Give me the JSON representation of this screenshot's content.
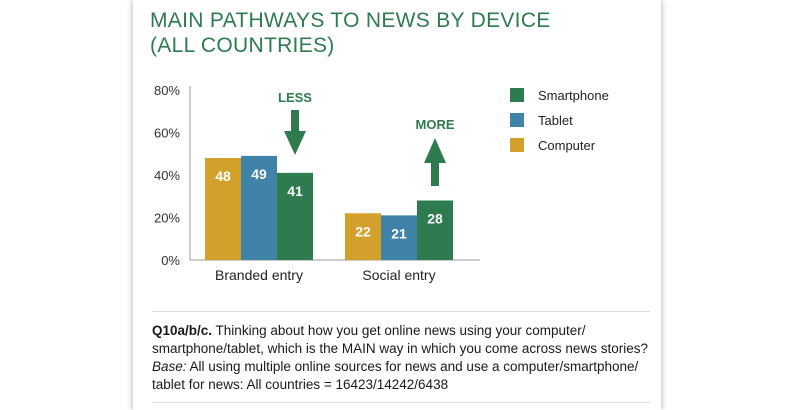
{
  "title": {
    "line1": "MAIN PATHWAYS TO NEWS BY DEVICE",
    "line2": "(ALL COUNTRIES)"
  },
  "colors": {
    "title": "#2e7b4f",
    "smartphone": "#2e7b4f",
    "tablet": "#3f83a8",
    "computer": "#d4a02c",
    "axis": "#999999",
    "arrow": "#2e7b4f"
  },
  "chart_data": {
    "type": "bar",
    "categories": [
      "Branded entry",
      "Social entry"
    ],
    "series": [
      {
        "name": "Computer",
        "values": [
          48,
          22
        ]
      },
      {
        "name": "Tablet",
        "values": [
          49,
          21
        ]
      },
      {
        "name": "Smartphone",
        "values": [
          41,
          28
        ]
      }
    ],
    "ylim": [
      0,
      80
    ],
    "yticks": [
      0,
      20,
      40,
      60,
      80
    ],
    "ytick_labels": [
      "0%",
      "20%",
      "40%",
      "60%",
      "80%"
    ],
    "legend": {
      "placement": "right",
      "entries": [
        "Smartphone",
        "Tablet",
        "Computer"
      ]
    },
    "annotations": [
      {
        "text": "LESS",
        "category": "Branded entry",
        "direction": "down"
      },
      {
        "text": "MORE",
        "category": "Social entry",
        "direction": "up"
      }
    ],
    "grid": false
  },
  "note": {
    "question_id": "Q10a/b/c.",
    "question_text": " Thinking about how you get online news using your computer/ smartphone/tablet, which is the MAIN way in which you come across news stories?",
    "base_label": "Base:",
    "base_text": " All using multiple online sources for news and use a computer/smartphone/ tablet for news: All countries = 16423/14242/6438"
  }
}
